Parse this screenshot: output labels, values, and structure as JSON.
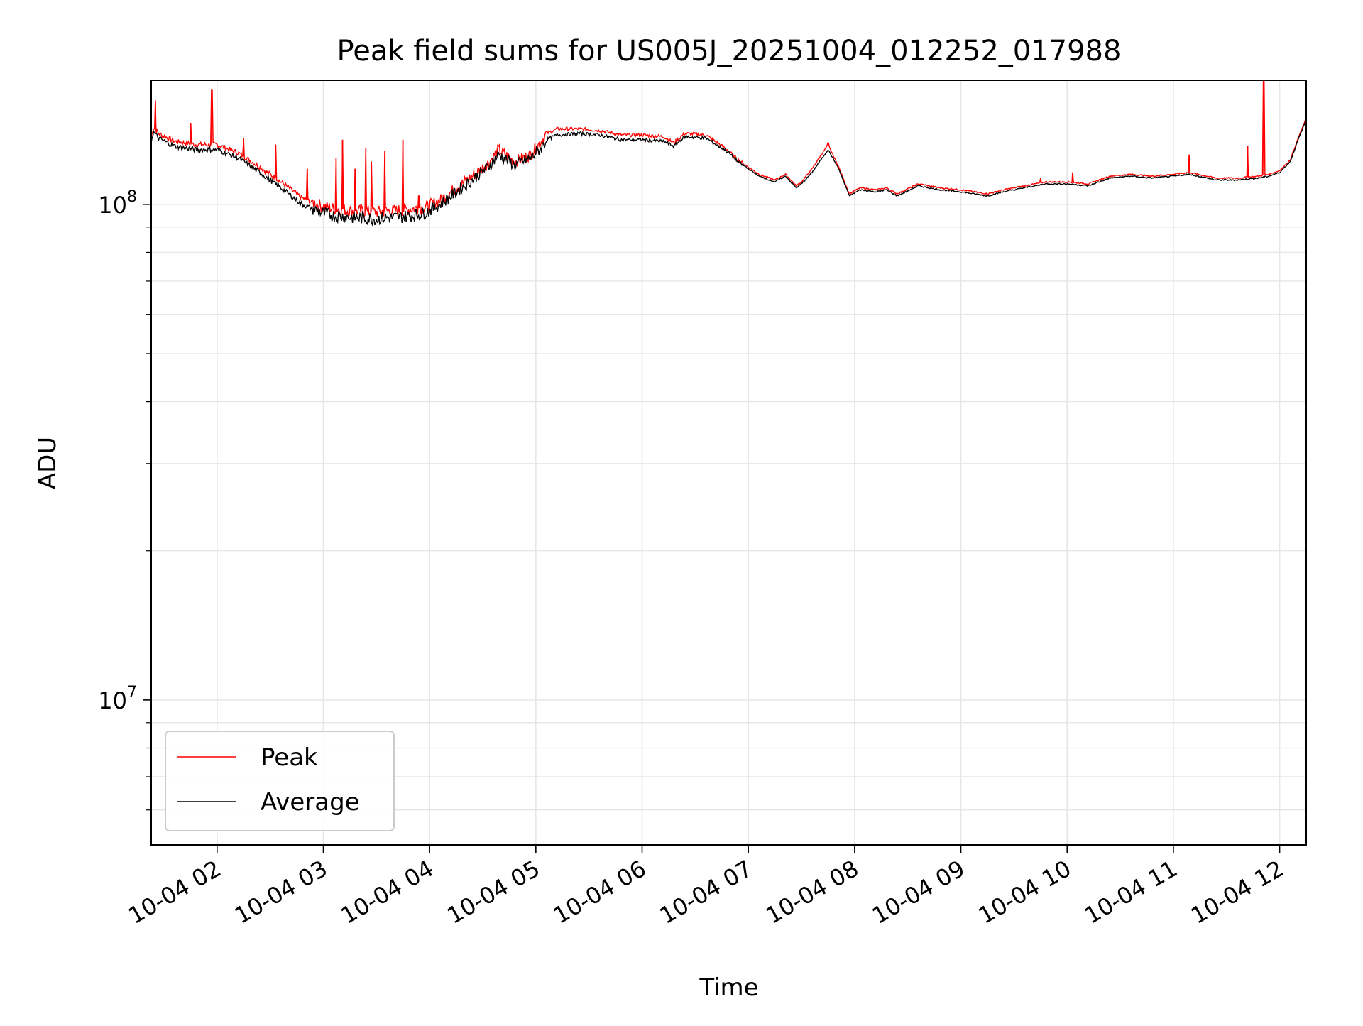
{
  "chart_data": {
    "type": "line",
    "title": "Peak field sums for US005J_20251004_012252_017988",
    "xlabel": "Time",
    "ylabel": "ADU",
    "yscale": "log",
    "ylim": [
      5100000,
      178000000
    ],
    "xlim_hours": [
      1.38,
      12.25
    ],
    "x_ticks": [
      {
        "hour": 2,
        "label": "10-04 02"
      },
      {
        "hour": 3,
        "label": "10-04 03"
      },
      {
        "hour": 4,
        "label": "10-04 04"
      },
      {
        "hour": 5,
        "label": "10-04 05"
      },
      {
        "hour": 6,
        "label": "10-04 06"
      },
      {
        "hour": 7,
        "label": "10-04 07"
      },
      {
        "hour": 8,
        "label": "10-04 08"
      },
      {
        "hour": 9,
        "label": "10-04 09"
      },
      {
        "hour": 10,
        "label": "10-04 10"
      },
      {
        "hour": 11,
        "label": "10-04 11"
      },
      {
        "hour": 12,
        "label": "10-04 12"
      }
    ],
    "y_major_ticks": [
      {
        "value": 10000000,
        "base": "10",
        "exp": "7"
      },
      {
        "value": 100000000,
        "base": "10",
        "exp": "8"
      }
    ],
    "y_minor_ticks": [
      6000000,
      7000000,
      8000000,
      9000000,
      20000000,
      30000000,
      40000000,
      50000000,
      60000000,
      70000000,
      80000000,
      90000000
    ],
    "grid": true,
    "legend_position": "lower-left",
    "series": [
      {
        "name": "Average",
        "color": "#000000",
        "x_hours": [
          1.38,
          1.4,
          1.45,
          1.6,
          1.8,
          2.0,
          2.2,
          2.4,
          2.6,
          2.8,
          3.0,
          3.1,
          3.2,
          3.3,
          3.4,
          3.5,
          3.6,
          3.7,
          3.8,
          3.95,
          4.1,
          4.25,
          4.4,
          4.55,
          4.65,
          4.8,
          4.95,
          5.05,
          5.1,
          5.2,
          5.4,
          5.6,
          5.8,
          6.0,
          6.2,
          6.3,
          6.4,
          6.6,
          6.8,
          6.9,
          7.1,
          7.25,
          7.35,
          7.45,
          7.5,
          7.6,
          7.75,
          7.85,
          7.95,
          8.05,
          8.2,
          8.3,
          8.4,
          8.6,
          8.8,
          9.0,
          9.25,
          9.4,
          9.6,
          9.8,
          10.0,
          10.2,
          10.4,
          10.6,
          10.8,
          11.0,
          11.15,
          11.4,
          11.6,
          11.8,
          11.9,
          12.0,
          12.1,
          12.18,
          12.25
        ],
        "values": [
          134000000,
          140000000,
          136000000,
          131000000,
          129000000,
          129000000,
          124000000,
          116000000,
          108000000,
          100000000,
          96000000,
          95000000,
          94500000,
          94000000,
          93800000,
          93500000,
          94000000,
          94200000,
          94800000,
          96000000,
          100000000,
          106000000,
          112000000,
          119000000,
          126000000,
          120000000,
          124000000,
          130000000,
          135000000,
          138000000,
          139000000,
          138000000,
          135000000,
          135000000,
          134000000,
          131000000,
          137000000,
          136000000,
          128000000,
          122000000,
          114000000,
          111000000,
          114000000,
          108000000,
          110000000,
          116000000,
          129000000,
          118000000,
          104000000,
          107000000,
          106000000,
          107000000,
          104000000,
          109000000,
          107000000,
          106000000,
          104000000,
          106000000,
          108000000,
          110000000,
          110000000,
          109000000,
          113000000,
          114000000,
          113000000,
          114000000,
          115000000,
          112000000,
          112000000,
          113000000,
          114000000,
          116000000,
          122000000,
          136000000,
          148000000
        ]
      },
      {
        "name": "Peak",
        "color": "#ff0000",
        "x_hours": [
          1.38,
          1.4,
          1.45,
          1.6,
          1.8,
          2.0,
          2.2,
          2.4,
          2.6,
          2.8,
          3.0,
          3.1,
          3.2,
          3.3,
          3.4,
          3.5,
          3.6,
          3.7,
          3.8,
          3.95,
          4.1,
          4.25,
          4.4,
          4.55,
          4.65,
          4.8,
          4.95,
          5.05,
          5.1,
          5.2,
          5.4,
          5.6,
          5.8,
          6.0,
          6.2,
          6.3,
          6.4,
          6.6,
          6.8,
          6.9,
          7.1,
          7.25,
          7.35,
          7.45,
          7.5,
          7.6,
          7.75,
          7.85,
          7.95,
          8.05,
          8.2,
          8.3,
          8.4,
          8.6,
          8.8,
          9.0,
          9.25,
          9.4,
          9.6,
          9.8,
          10.0,
          10.2,
          10.4,
          10.6,
          10.8,
          11.0,
          11.15,
          11.4,
          11.6,
          11.8,
          11.9,
          12.0,
          12.1,
          12.18,
          12.25
        ],
        "values": [
          136000000,
          143000000,
          139000000,
          134000000,
          132000000,
          132000000,
          127000000,
          119000000,
          111000000,
          103000000,
          99000000,
          98000000,
          97500000,
          97000000,
          96800000,
          96500000,
          97000000,
          97200000,
          97800000,
          98500000,
          102000000,
          108000000,
          114000000,
          121000000,
          129000000,
          122000000,
          126000000,
          134000000,
          139000000,
          142000000,
          142000000,
          141000000,
          138000000,
          138000000,
          137000000,
          133000000,
          139000000,
          138000000,
          129000000,
          123000000,
          115000000,
          112000000,
          115000000,
          109000000,
          111000000,
          118000000,
          132000000,
          119000000,
          105000000,
          108000000,
          107000000,
          108000000,
          105000000,
          110000000,
          108000000,
          107000000,
          105000000,
          107000000,
          109000000,
          111000000,
          111000000,
          110000000,
          114000000,
          115000000,
          114000000,
          115000000,
          116000000,
          113000000,
          113000000,
          114000000,
          115000000,
          117000000,
          123000000,
          137000000,
          149000000
        ],
        "spikes": [
          {
            "hour": 1.42,
            "value": 162000000
          },
          {
            "hour": 1.75,
            "value": 146000000
          },
          {
            "hour": 1.95,
            "value": 170000000
          },
          {
            "hour": 2.25,
            "value": 136000000
          },
          {
            "hour": 2.55,
            "value": 132000000
          },
          {
            "hour": 2.85,
            "value": 118000000
          },
          {
            "hour": 3.12,
            "value": 124000000
          },
          {
            "hour": 3.18,
            "value": 135000000
          },
          {
            "hour": 3.3,
            "value": 118000000
          },
          {
            "hour": 3.4,
            "value": 130000000
          },
          {
            "hour": 3.45,
            "value": 122000000
          },
          {
            "hour": 3.58,
            "value": 128000000
          },
          {
            "hour": 3.75,
            "value": 135000000
          },
          {
            "hour": 3.9,
            "value": 104000000
          },
          {
            "hour": 7.75,
            "value": 133000000
          },
          {
            "hour": 9.75,
            "value": 113000000
          },
          {
            "hour": 10.05,
            "value": 116000000
          },
          {
            "hour": 11.15,
            "value": 126000000
          },
          {
            "hour": 11.7,
            "value": 131000000
          },
          {
            "hour": 11.85,
            "value": 178000000
          }
        ]
      }
    ],
    "legend": [
      {
        "name": "Peak",
        "color": "#ff0000"
      },
      {
        "name": "Average",
        "color": "#000000"
      }
    ]
  }
}
